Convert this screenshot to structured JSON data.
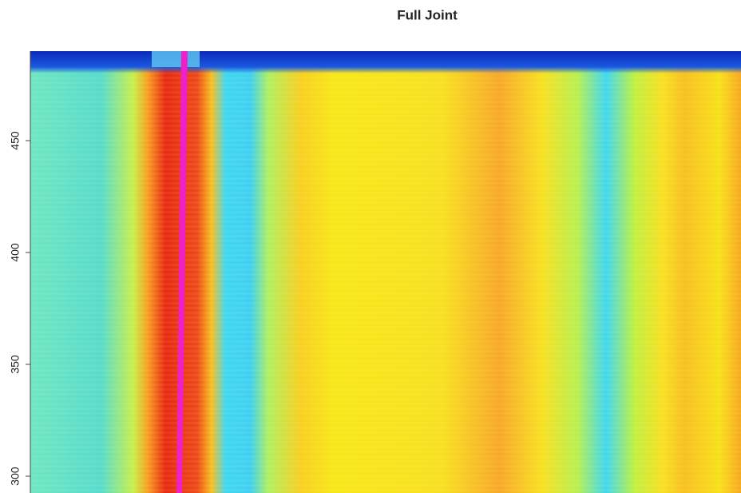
{
  "chart_data": {
    "type": "heatmap",
    "title": "Full Joint",
    "ylim": [
      292.5,
      490
    ],
    "yticks": [
      300,
      350,
      400,
      450
    ]
  }
}
